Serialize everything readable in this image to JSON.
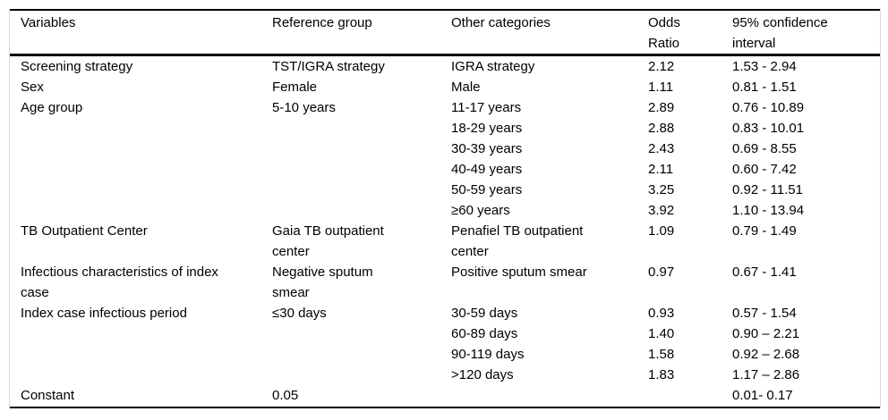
{
  "table": {
    "columns": [
      {
        "label": "Variables"
      },
      {
        "label": "Reference group"
      },
      {
        "label": "Other categories"
      },
      {
        "label": "Odds\nRatio"
      },
      {
        "label": "95% confidence\ninterval"
      }
    ],
    "rows": [
      {
        "variable": "Screening strategy",
        "reference": "TST/IGRA strategy",
        "category": "IGRA strategy",
        "odds_ratio": "2.12",
        "ci": "1.53 - 2.94"
      },
      {
        "variable": "Sex",
        "reference": "Female",
        "category": "Male",
        "odds_ratio": "1.11",
        "ci": "0.81 - 1.51"
      },
      {
        "variable": "Age group",
        "reference": "5-10 years",
        "category": "11-17 years",
        "odds_ratio": "2.89",
        "ci": "0.76 - 10.89"
      },
      {
        "variable": "",
        "reference": "",
        "category": "18-29 years",
        "odds_ratio": "2.88",
        "ci": "0.83 - 10.01"
      },
      {
        "variable": "",
        "reference": "",
        "category": "30-39 years",
        "odds_ratio": "2.43",
        "ci": "0.69 - 8.55"
      },
      {
        "variable": "",
        "reference": "",
        "category": "40-49 years",
        "odds_ratio": "2.11",
        "ci": "0.60 - 7.42"
      },
      {
        "variable": "",
        "reference": "",
        "category": "50-59 years",
        "odds_ratio": "3.25",
        "ci": "0.92 - 11.51"
      },
      {
        "variable": "",
        "reference": "",
        "category": "≥60 years",
        "odds_ratio": "3.92",
        "ci": "1.10 - 13.94"
      },
      {
        "variable": "TB Outpatient Center",
        "reference": "Gaia TB outpatient\ncenter",
        "category": "Penafiel TB outpatient\ncenter",
        "odds_ratio": "1.09",
        "ci": "0.79 - 1.49"
      },
      {
        "variable": "Infectious characteristics of index\ncase",
        "reference": "Negative sputum\nsmear",
        "category": "Positive sputum smear",
        "odds_ratio": "0.97",
        "ci": "0.67 - 1.41"
      },
      {
        "variable": "Index case infectious period",
        "reference": "≤30 days",
        "category": "30-59 days",
        "odds_ratio": "0.93",
        "ci": "0.57 - 1.54"
      },
      {
        "variable": "",
        "reference": "",
        "category": "60-89 days",
        "odds_ratio": "1.40",
        "ci": "0.90 – 2.21"
      },
      {
        "variable": "",
        "reference": "",
        "category": "90-119 days",
        "odds_ratio": "1.58",
        "ci": "0.92 – 2.68"
      },
      {
        "variable": "",
        "reference": "",
        "category": ">120 days",
        "odds_ratio": "1.83",
        "ci": "1.17 – 2.86"
      },
      {
        "variable": "Constant",
        "reference": "0.05",
        "category": "",
        "odds_ratio": "",
        "ci": "0.01- 0.17"
      }
    ]
  }
}
